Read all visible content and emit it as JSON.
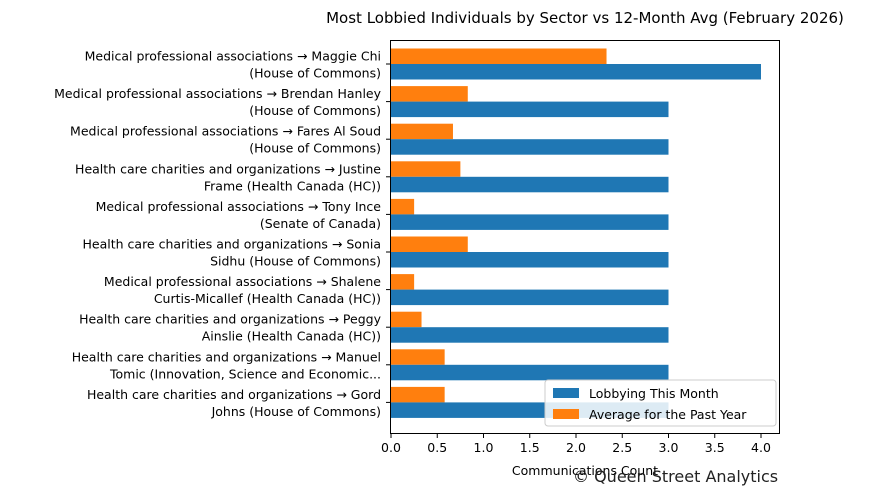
{
  "chart_data": {
    "type": "bar",
    "orientation": "horizontal",
    "title": "Most Lobbied Individuals by Sector vs 12-Month Avg (February 2026)",
    "xlabel": "Communications Count",
    "ylabel": "",
    "xlim": [
      0,
      4.2
    ],
    "xticks": [
      "0.0",
      "0.5",
      "1.0",
      "1.5",
      "2.0",
      "2.5",
      "3.0",
      "3.5",
      "4.0"
    ],
    "grid": false,
    "legend_position": "lower-right",
    "categories": [
      [
        "Medical professional associations → Maggie Chi",
        "(House of Commons)"
      ],
      [
        "Medical professional associations → Brendan Hanley",
        "(House of Commons)"
      ],
      [
        "Medical professional associations → Fares Al Soud",
        "(House of Commons)"
      ],
      [
        "Health care charities and organizations → Justine",
        "Frame (Health Canada (HC))"
      ],
      [
        "Medical professional associations → Tony Ince",
        "(Senate of Canada)"
      ],
      [
        "Health care charities and organizations → Sonia",
        "Sidhu (House of Commons)"
      ],
      [
        "Medical professional associations → Shalene",
        "Curtis-Micallef (Health Canada (HC))"
      ],
      [
        "Health care charities and organizations → Peggy",
        "Ainslie (Health Canada (HC))"
      ],
      [
        "Health care charities and organizations → Manuel",
        "Tomic (Innovation, Science and Economic..."
      ],
      [
        "Health care charities and organizations → Gord",
        "Johns (House of Commons)"
      ]
    ],
    "series": [
      {
        "name": "Lobbying This Month",
        "color": "#1f77b4",
        "values": [
          4,
          3,
          3,
          3,
          3,
          3,
          3,
          3,
          3,
          3
        ]
      },
      {
        "name": "Average for the Past Year",
        "color": "#ff7f0e",
        "values": [
          2.33,
          0.83,
          0.67,
          0.75,
          0.25,
          0.83,
          0.25,
          0.33,
          0.58,
          0.58
        ]
      }
    ]
  },
  "watermark": "© Queen Street Analytics"
}
